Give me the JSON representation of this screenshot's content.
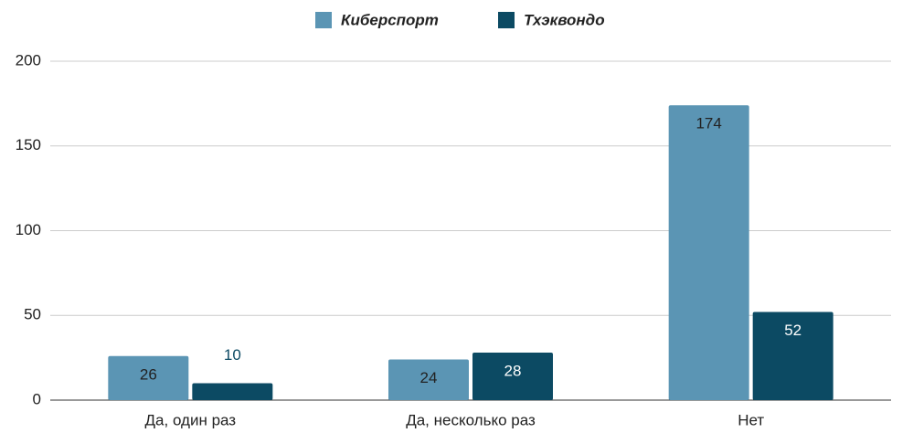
{
  "chart_data": {
    "type": "bar",
    "categories": [
      "Да, один раз",
      "Да, несколько раз",
      "Нет"
    ],
    "series": [
      {
        "name": "Киберспорт",
        "color": "#5b95b4",
        "values": [
          26,
          24,
          174
        ]
      },
      {
        "name": "Тхэквондо",
        "color": "#0c4a63",
        "values": [
          10,
          28,
          52
        ]
      }
    ],
    "ylim": [
      0,
      200
    ],
    "yticks": [
      0,
      50,
      100,
      150,
      200
    ],
    "grid": true,
    "legend": "top"
  }
}
